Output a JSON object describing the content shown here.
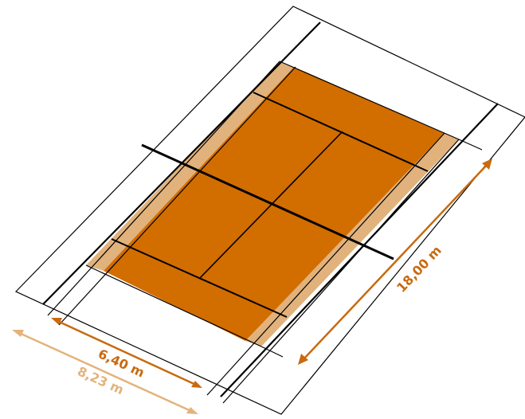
{
  "diagram": {
    "dimensions": {
      "singles_width": "6,40 m",
      "doubles_width": "8,23 m",
      "court_length": "18,00 m"
    },
    "colors": {
      "court_fill": "#d26d00",
      "doubles_alley": "#e2b27c",
      "dim_dark": "#c86a10",
      "dim_light": "#e3b37c",
      "lines": "#000000"
    }
  }
}
